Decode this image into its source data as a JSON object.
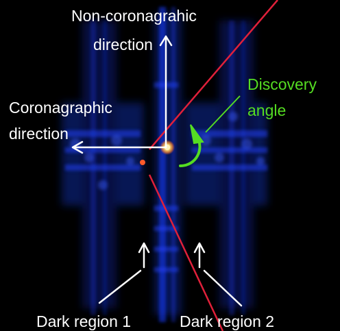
{
  "labels": {
    "non_coronagraphic_line1": "Non-coronagrahic",
    "non_coronagraphic_line2": "direction",
    "coronagraphic_line1": "Coronagraphic",
    "coronagraphic_line2": "direction",
    "discovery_line1": "Discovery",
    "discovery_line2": "angle",
    "dark_region_1": "Dark region 1",
    "dark_region_2": "Dark region 2"
  },
  "colors": {
    "background": "#000000",
    "psf_blue": "#1a3cff",
    "annotation_white": "#ffffff",
    "discovery_green": "#55dd22",
    "boundary_red": "#e0203a",
    "central_star": "#ffe27a",
    "companion": "#ff5a2a"
  },
  "icons": [
    "arrow-up-icon",
    "arrow-left-icon",
    "curved-arrow-icon"
  ]
}
